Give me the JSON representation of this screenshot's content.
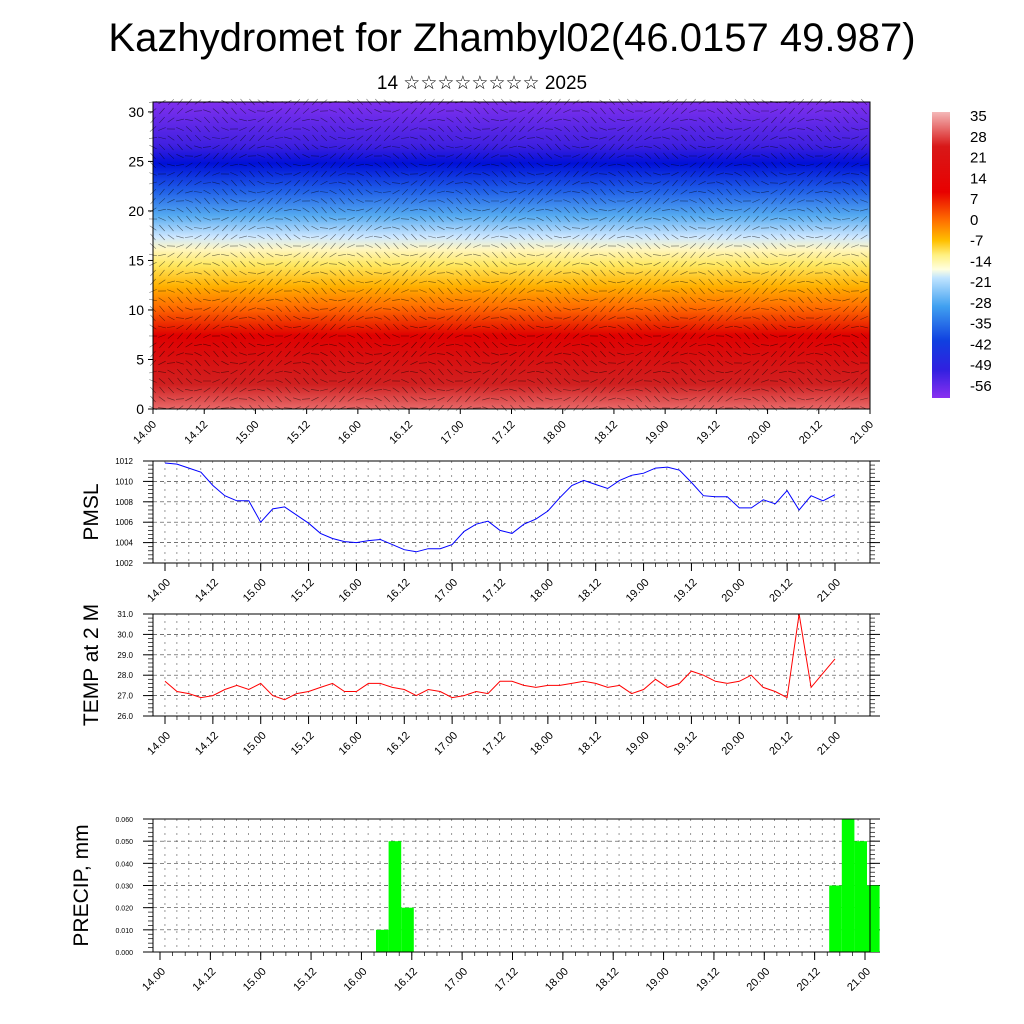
{
  "title": "Kazhydromet for Zhambyl02(46.0157 49.987)",
  "subtitle": "14 ☆☆☆☆☆☆☆☆ 2025",
  "time_ticks": [
    "14.00",
    "14.12",
    "15.00",
    "15.12",
    "16.00",
    "16.12",
    "17.00",
    "17.12",
    "18.00",
    "18.12",
    "19.00",
    "19.12",
    "20.00",
    "20.12",
    "21.00"
  ],
  "chart_data": [
    {
      "type": "heatmap",
      "name": "cross-section",
      "y_ticks": [
        "0",
        "5",
        "10",
        "15",
        "20",
        "25",
        "30"
      ],
      "ylim": [
        0,
        31
      ],
      "colorbar": {
        "labels": [
          "35",
          "28",
          "21",
          "14",
          "7",
          "0",
          "-7",
          "-14",
          "-21",
          "-28",
          "-35",
          "-42",
          "-49",
          "-56"
        ],
        "range": [
          -63,
          38
        ]
      },
      "grid": false
    },
    {
      "type": "line",
      "name": "PMSL",
      "ylabel": "PMSL",
      "y_ticks": [
        "1012",
        "1010",
        "1008",
        "1006",
        "1004",
        "1002"
      ],
      "ylim": [
        1002,
        1012
      ],
      "color": "#0000ff",
      "grid": true,
      "values": [
        1011.8,
        1011.7,
        1011.3,
        1010.9,
        1009.6,
        1008.6,
        1008.1,
        1008.1,
        1006.0,
        1007.3,
        1007.5,
        1006.7,
        1005.9,
        1004.9,
        1004.4,
        1004.1,
        1004.0,
        1004.2,
        1004.3,
        1003.8,
        1003.3,
        1003.1,
        1003.4,
        1003.4,
        1003.8,
        1005.1,
        1005.8,
        1006.1,
        1005.2,
        1004.9,
        1005.8,
        1006.3,
        1007.1,
        1008.4,
        1009.6,
        1010.1,
        1009.7,
        1009.3,
        1010.1,
        1010.6,
        1010.8,
        1011.3,
        1011.4,
        1011.1,
        1009.9,
        1008.6,
        1008.5,
        1008.5,
        1007.4,
        1007.4,
        1008.2,
        1007.8,
        1009.1,
        1007.2,
        1008.6,
        1008.1,
        1008.7
      ]
    },
    {
      "type": "line",
      "name": "TEMP at 2 M",
      "ylabel": "TEMP at 2 M",
      "y_ticks": [
        "31.0",
        "30.0",
        "29.0",
        "28.0",
        "27.0",
        "26.0"
      ],
      "ylim": [
        26,
        31
      ],
      "color": "#ff0000",
      "grid": true,
      "values": [
        27.7,
        27.2,
        27.1,
        26.9,
        27.0,
        27.3,
        27.5,
        27.3,
        27.6,
        27.0,
        26.8,
        27.1,
        27.2,
        27.4,
        27.6,
        27.2,
        27.2,
        27.6,
        27.6,
        27.4,
        27.3,
        27.0,
        27.3,
        27.2,
        26.9,
        27.0,
        27.2,
        27.1,
        27.7,
        27.7,
        27.5,
        27.4,
        27.5,
        27.5,
        27.6,
        27.7,
        27.6,
        27.4,
        27.5,
        27.1,
        27.3,
        27.8,
        27.4,
        27.6,
        28.2,
        28.0,
        27.7,
        27.6,
        27.7,
        28.0,
        27.4,
        27.2,
        26.9,
        31.0,
        27.4,
        28.1,
        28.8
      ]
    },
    {
      "type": "bar",
      "name": "PRECIP",
      "ylabel": "PRECIP, mm",
      "y_ticks": [
        "0.060",
        "0.050",
        "0.040",
        "0.030",
        "0.020",
        "0.010",
        "0.000"
      ],
      "ylim": [
        0,
        0.06
      ],
      "color": "#00ff00",
      "grid": true,
      "bars": [
        {
          "t": 17,
          "value": 0.01
        },
        {
          "t": 18,
          "value": 0.05
        },
        {
          "t": 19,
          "value": 0.02
        },
        {
          "t": 53,
          "value": 0.03
        },
        {
          "t": 54,
          "value": 0.06
        },
        {
          "t": 55,
          "value": 0.05
        },
        {
          "t": 56,
          "value": 0.03
        }
      ]
    }
  ]
}
